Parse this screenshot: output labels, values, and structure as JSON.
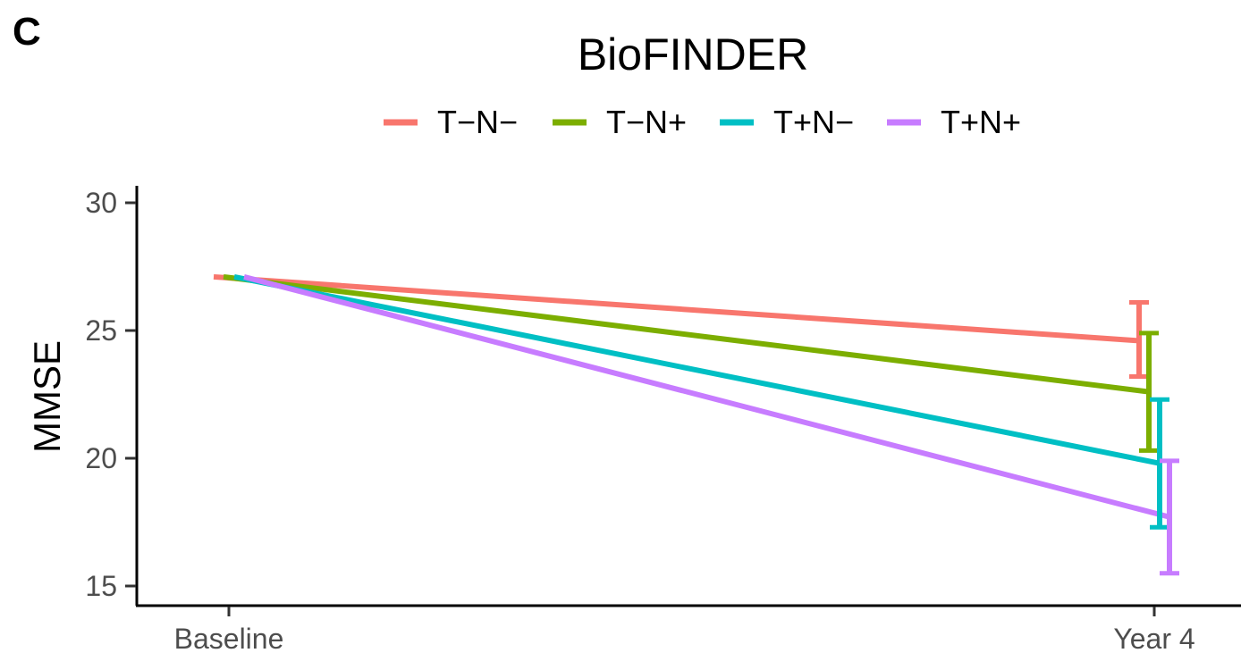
{
  "panel_label": "C",
  "chart_data": {
    "type": "line",
    "title": "BioFINDER",
    "xlabel": "",
    "ylabel": "MMSE",
    "categories": [
      "Baseline",
      "Year 4"
    ],
    "ylim": [
      14.5,
      30.6
    ],
    "yticks": [
      "15",
      "20",
      "25",
      "30"
    ],
    "grid": false,
    "legend_position": "top",
    "series": [
      {
        "name": "T−N−",
        "color": "#F8766D",
        "values": [
          27.1,
          24.6
        ],
        "error": {
          "low": 23.2,
          "high": 26.1
        }
      },
      {
        "name": "T−N+",
        "color": "#7CAE00",
        "values": [
          27.1,
          22.6
        ],
        "error": {
          "low": 20.3,
          "high": 24.9
        }
      },
      {
        "name": "T+N−",
        "color": "#00BFC4",
        "values": [
          27.1,
          19.8
        ],
        "error": {
          "low": 17.3,
          "high": 22.3
        }
      },
      {
        "name": "T+N+",
        "color": "#C77CFF",
        "values": [
          27.1,
          17.7
        ],
        "error": {
          "low": 15.5,
          "high": 19.9
        }
      }
    ]
  }
}
